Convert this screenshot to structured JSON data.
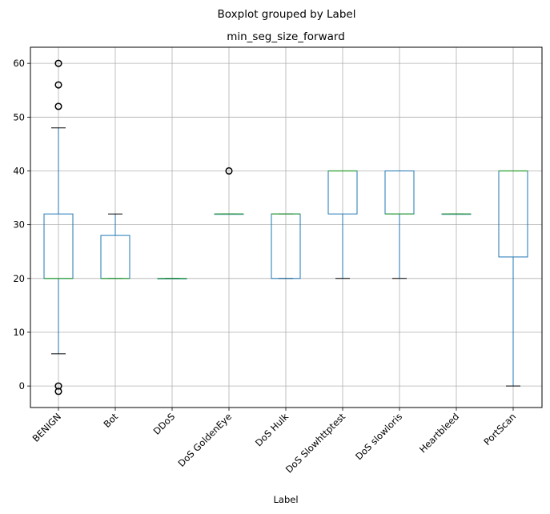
{
  "chart_data": {
    "type": "boxplot",
    "suptitle": "Boxplot grouped by Label",
    "title": "min_seg_size_forward",
    "xlabel": "Label",
    "ylabel": "",
    "categories": [
      "BENIGN",
      "Bot",
      "DDoS",
      "DoS GoldenEye",
      "DoS Hulk",
      "DoS Slowhttptest",
      "DoS slowloris",
      "Heartbleed",
      "PortScan"
    ],
    "ylim": [
      -4,
      63
    ],
    "yticks": [
      0,
      10,
      20,
      30,
      40,
      50,
      60
    ],
    "grid": true,
    "boxes": [
      {
        "category": "BENIGN",
        "whislo": 6,
        "q1": 20,
        "med": 20,
        "q3": 32,
        "whishi": 48,
        "fliers": [
          60,
          56,
          52,
          0,
          -1
        ]
      },
      {
        "category": "Bot",
        "whislo": 20,
        "q1": 20,
        "med": 20,
        "q3": 28,
        "whishi": 32,
        "fliers": []
      },
      {
        "category": "DDoS",
        "whislo": 20,
        "q1": 20,
        "med": 20,
        "q3": 20,
        "whishi": 20,
        "fliers": []
      },
      {
        "category": "DoS GoldenEye",
        "whislo": 32,
        "q1": 32,
        "med": 32,
        "q3": 32,
        "whishi": 32,
        "fliers": [
          40
        ]
      },
      {
        "category": "DoS Hulk",
        "whislo": 20,
        "q1": 20,
        "med": 32,
        "q3": 32,
        "whishi": 32,
        "fliers": []
      },
      {
        "category": "DoS Slowhttptest",
        "whislo": 20,
        "q1": 32,
        "med": 40,
        "q3": 40,
        "whishi": 40,
        "fliers": []
      },
      {
        "category": "DoS slowloris",
        "whislo": 20,
        "q1": 32,
        "med": 32,
        "q3": 40,
        "whishi": 40,
        "fliers": []
      },
      {
        "category": "Heartbleed",
        "whislo": 32,
        "q1": 32,
        "med": 32,
        "q3": 32,
        "whishi": 32,
        "fliers": []
      },
      {
        "category": "PortScan",
        "whislo": 0,
        "q1": 24,
        "med": 40,
        "q3": 40,
        "whishi": 40,
        "fliers": []
      }
    ],
    "colors": {
      "box": "#1f77b4",
      "median": "#2ca02c",
      "whisker_cap": "#000000",
      "flier": "#000000",
      "grid": "#b0b0b0",
      "axes": "#000000"
    }
  }
}
